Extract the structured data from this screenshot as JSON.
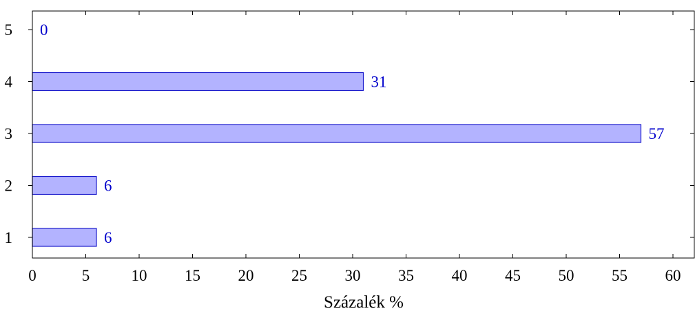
{
  "chart_data": {
    "type": "bar",
    "orientation": "horizontal",
    "categories": [
      "1",
      "2",
      "3",
      "4",
      "5"
    ],
    "values": [
      6,
      6,
      57,
      31,
      0
    ],
    "data_labels": [
      "6",
      "6",
      "57",
      "31",
      "0"
    ],
    "xlabel": "Százalék %",
    "ylabel": "",
    "xlim": [
      0,
      62
    ],
    "xticks": [
      "0",
      "5",
      "10",
      "15",
      "20",
      "25",
      "30",
      "35",
      "40",
      "45",
      "50",
      "55",
      "60"
    ],
    "grid": false,
    "legend": "none",
    "colors": {
      "bar_fill": "#b3b3ff",
      "bar_stroke": "#1a1acc",
      "label": "#0000cc",
      "axis": "#000000"
    }
  }
}
